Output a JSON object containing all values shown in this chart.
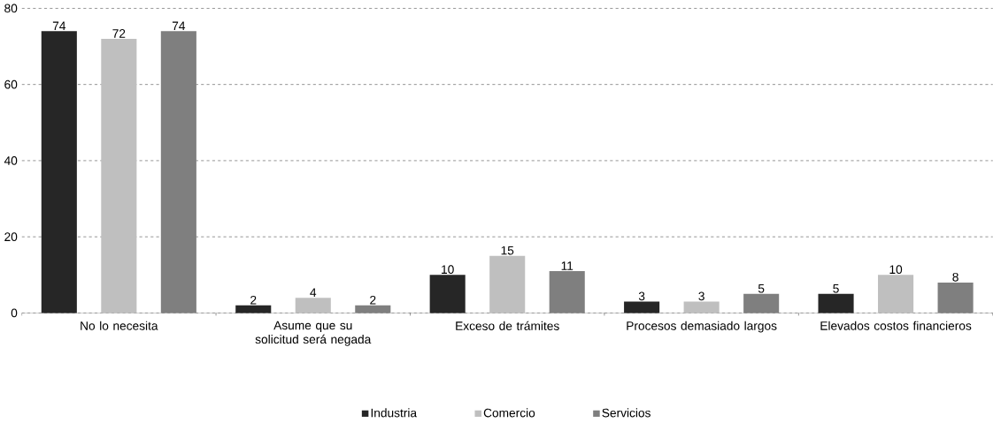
{
  "chart_data": {
    "type": "bar",
    "categories": [
      "No lo necesita",
      "Asume que su solicitud será negada",
      "Exceso de trámites",
      "Procesos demasiado largos",
      "Elevados costos financieros"
    ],
    "series": [
      {
        "name": "Industria",
        "color": "#262626",
        "values": [
          74,
          2,
          10,
          3,
          5
        ]
      },
      {
        "name": "Comercio",
        "color": "#bfbfbf",
        "values": [
          72,
          4,
          15,
          3,
          10
        ]
      },
      {
        "name": "Servicios",
        "color": "#7f7f7f",
        "values": [
          74,
          2,
          11,
          5,
          8
        ]
      }
    ],
    "ylim": [
      0,
      80
    ],
    "yticks": [
      0,
      20,
      40,
      60,
      80
    ],
    "grid": "y",
    "legend": "bottom",
    "data_labels": true
  }
}
